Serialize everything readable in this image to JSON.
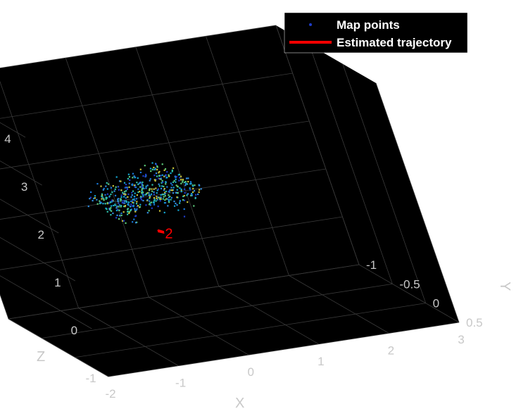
{
  "chart_data": {
    "type": "scatter",
    "title": "",
    "xlabel": "X",
    "ylabel": "Y",
    "zlabel": "Z",
    "xlim": [
      -2,
      3
    ],
    "ylim": [
      -1,
      0.5
    ],
    "zlim": [
      -1,
      4
    ],
    "x_ticks": [
      "-2",
      "-1",
      "0",
      "1",
      "2",
      "3"
    ],
    "y_ticks": [
      "-1",
      "-0.5",
      "0",
      "0.5"
    ],
    "z_ticks": [
      "-1",
      "0",
      "1",
      "2",
      "3",
      "4"
    ],
    "grid": true,
    "background": "#000000",
    "legend": {
      "placement": "top-right",
      "entries": [
        {
          "label": "Map points",
          "color": "#1f3cc8",
          "marker": "point"
        },
        {
          "label": "Estimated trajectory",
          "color": "#ff0000",
          "marker": "line"
        }
      ]
    },
    "series": [
      {
        "name": "Map points",
        "type": "scatter",
        "colormap": "parula",
        "point_count": 500,
        "x_range": [
          -0.9,
          0.3
        ],
        "y_range": [
          -0.3,
          0.3
        ],
        "z_range": [
          1.6,
          2.4
        ]
      },
      {
        "name": "Estimated trajectory",
        "type": "line",
        "color": "#ff0000",
        "points": [
          [
            -0.25,
            -0.05,
            1.2
          ],
          [
            -0.2,
            -0.03,
            1.18
          ],
          [
            -0.22,
            0.0,
            1.22
          ],
          [
            -0.26,
            -0.02,
            1.24
          ]
        ]
      }
    ],
    "annotations": [
      {
        "text": "2",
        "color": "#ff0000"
      }
    ]
  }
}
